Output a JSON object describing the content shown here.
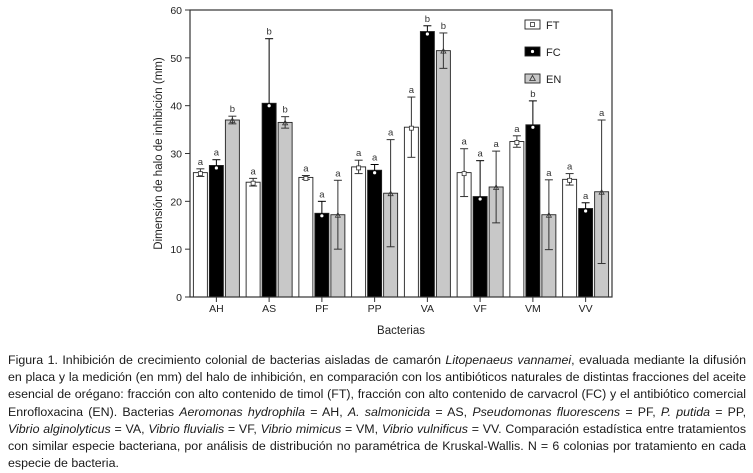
{
  "chart_data": {
    "type": "bar",
    "xlabel": "Bacterias",
    "ylabel": "Dimensión de halo de inhibición (mm)",
    "ylim": [
      0,
      60
    ],
    "yticks": [
      0,
      10,
      20,
      30,
      40,
      50,
      60
    ],
    "categories": [
      "AH",
      "AS",
      "PF",
      "PP",
      "VA",
      "VF",
      "VM",
      "VV"
    ],
    "legend_position": "top-right",
    "grid": false,
    "series": [
      {
        "name": "FT",
        "fill": "#ffffff",
        "marker": "□",
        "values": [
          26,
          24,
          25,
          27.2,
          35.5,
          26,
          32.5,
          24.6
        ],
        "err": [
          0.8,
          0.8,
          0.4,
          1.4,
          6.3,
          5,
          1.2,
          1.2
        ],
        "letters": [
          "a",
          "a",
          "a",
          "a",
          "a",
          "a",
          "a",
          "a"
        ]
      },
      {
        "name": "FC",
        "fill": "#000000",
        "marker": "•",
        "values": [
          27.5,
          40.5,
          17.5,
          26.5,
          55.5,
          21,
          36,
          18.5
        ],
        "err": [
          1.2,
          13.5,
          2.5,
          1.2,
          1.2,
          7.5,
          5,
          1.2
        ],
        "letters": [
          "a",
          "b",
          "a",
          "a",
          "b",
          "a",
          "b",
          "a"
        ]
      },
      {
        "name": "EN",
        "fill": "#c8c8c8",
        "marker": "△",
        "values": [
          37,
          36.5,
          17.2,
          21.7,
          51.5,
          23,
          17.2,
          22
        ],
        "err": [
          0.8,
          1.2,
          7.2,
          11.2,
          3.7,
          7.5,
          7.3,
          15
        ],
        "letters": [
          "b",
          "b",
          "a",
          "a",
          "b",
          "a",
          "a",
          "a"
        ]
      }
    ]
  },
  "caption": {
    "segments": [
      {
        "t": "Figura 1. Inhibición de crecimiento colonial de bacterias aisladas de camarón "
      },
      {
        "t": "Litopenaeus vannamei",
        "i": true
      },
      {
        "t": ", evaluada mediante la difusión en placa y la medición (en mm) del halo de inhibición, en comparación con los antibióticos naturales de distintas fracciones del aceite esencial de orégano: fracción con alto contenido de timol (FT), fracción con alto contenido de carvacrol (FC) y el antibiótico comercial Enrofloxacina (EN). Bacterias "
      },
      {
        "t": "Aeromonas hydrophila",
        "i": true
      },
      {
        "t": " = AH, "
      },
      {
        "t": "A. salmonicida",
        "i": true
      },
      {
        "t": " = AS, "
      },
      {
        "t": "Pseudomonas fluorescens",
        "i": true
      },
      {
        "t": " = PF, "
      },
      {
        "t": "P. putida",
        "i": true
      },
      {
        "t": " = PP, "
      },
      {
        "t": "Vibrio alginolyticus",
        "i": true
      },
      {
        "t": " = VA, "
      },
      {
        "t": "Vibrio fluvialis",
        "i": true
      },
      {
        "t": " = VF, "
      },
      {
        "t": "Vibrio mimicus",
        "i": true
      },
      {
        "t": " = VM, "
      },
      {
        "t": "Vibrio vulnificus",
        "i": true
      },
      {
        "t": " = VV. Comparación estadística entre tratamientos con similar especie bacteriana, por análisis de distribución no paramétrica de Kruskal-Wallis. N = 6 colonias por tratamiento en cada especie de bacteria."
      }
    ]
  }
}
